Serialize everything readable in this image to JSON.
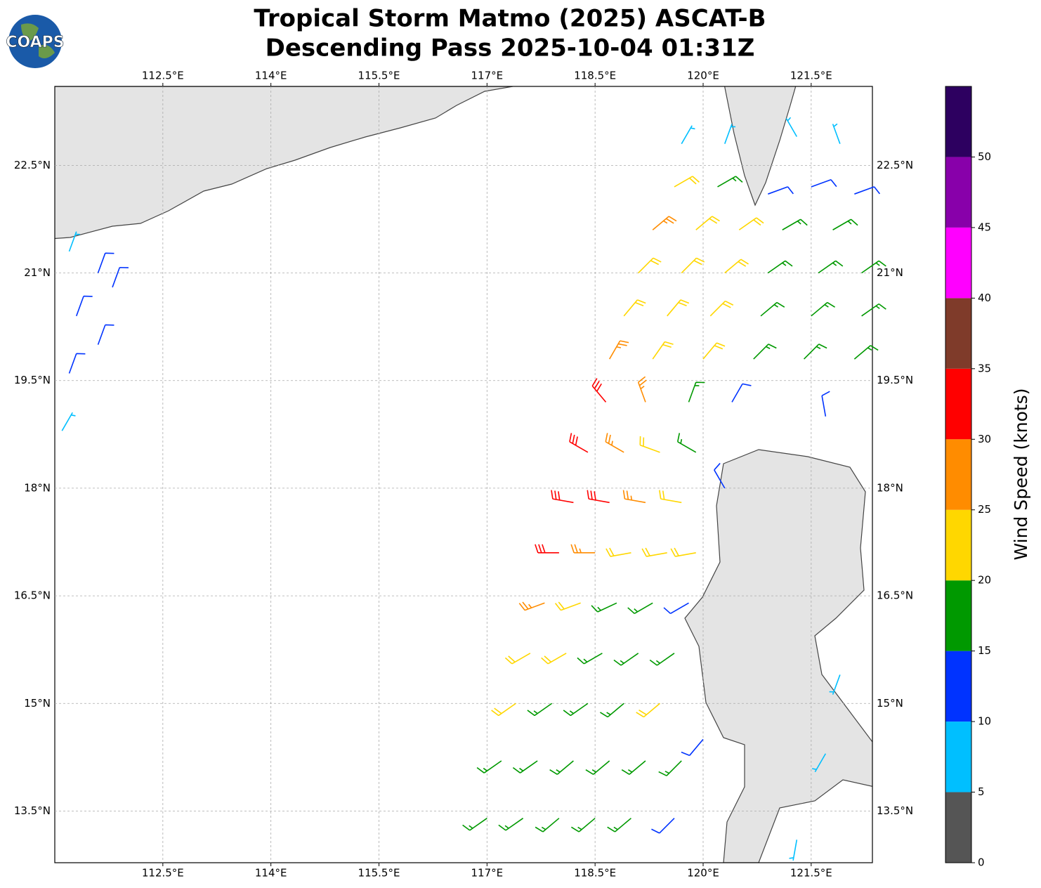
{
  "header": {
    "title_line1": "Tropical Storm Matmo (2025) ASCAT-B",
    "title_line2": "Descending Pass 2025-10-04 01:31Z",
    "logo_text": "COAPS"
  },
  "map": {
    "xlim": [
      111.0,
      122.35
    ],
    "ylim": [
      12.78,
      23.6
    ],
    "xticks": [
      {
        "value": 112.5,
        "label": "112.5°E"
      },
      {
        "value": 114,
        "label": "114°E"
      },
      {
        "value": 115.5,
        "label": "115.5°E"
      },
      {
        "value": 117,
        "label": "117°E"
      },
      {
        "value": 118.5,
        "label": "118.5°E"
      },
      {
        "value": 120,
        "label": "120°E"
      },
      {
        "value": 121.5,
        "label": "121.5°E"
      }
    ],
    "yticks": [
      {
        "value": 13.5,
        "label": "13.5°N"
      },
      {
        "value": 15,
        "label": "15°N"
      },
      {
        "value": 16.5,
        "label": "16.5°N"
      },
      {
        "value": 18,
        "label": "18°N"
      },
      {
        "value": 19.5,
        "label": "19.5°N"
      },
      {
        "value": 21,
        "label": "21°N"
      },
      {
        "value": 22.5,
        "label": "22.5°N"
      }
    ],
    "grid": true,
    "barbs": {
      "lon": [
        119.7,
        120.3,
        121.3,
        121.9,
        119.6,
        120.2,
        120.9,
        121.5,
        122.1,
        119.3,
        119.9,
        120.5,
        121.1,
        121.8,
        119.1,
        119.7,
        120.3,
        120.9,
        121.6,
        122.2,
        118.9,
        119.5,
        120.1,
        120.8,
        121.5,
        122.2,
        118.7,
        119.3,
        120.0,
        120.7,
        121.4,
        122.1,
        118.65,
        119.2,
        119.8,
        120.4,
        121.7,
        118.4,
        118.9,
        119.4,
        119.9,
        118.2,
        118.7,
        119.2,
        119.7,
        118.0,
        118.5,
        119.0,
        119.5,
        119.9,
        117.8,
        118.3,
        118.8,
        119.3,
        119.8,
        117.6,
        118.1,
        118.6,
        119.1,
        119.6,
        117.4,
        117.9,
        118.4,
        118.9,
        119.4,
        120.0,
        117.2,
        117.7,
        118.2,
        118.7,
        119.2,
        119.7,
        117.0,
        117.5,
        118.0,
        118.5,
        119.0,
        119.6,
        121.9,
        121.7,
        121.3,
        120.3,
        111.2,
        111.6,
        111.3,
        111.8,
        111.2,
        111.1,
        111.6
      ],
      "lat": [
        22.8,
        22.8,
        22.9,
        22.8,
        22.2,
        22.2,
        22.1,
        22.2,
        22.1,
        21.6,
        21.6,
        21.6,
        21.6,
        21.6,
        21.0,
        21.0,
        21.0,
        21.0,
        21.0,
        21.0,
        20.4,
        20.4,
        20.4,
        20.4,
        20.4,
        20.4,
        19.8,
        19.8,
        19.8,
        19.8,
        19.8,
        19.8,
        19.2,
        19.2,
        19.2,
        19.2,
        19.0,
        18.5,
        18.5,
        18.5,
        18.5,
        17.8,
        17.8,
        17.8,
        17.8,
        17.1,
        17.1,
        17.1,
        17.1,
        17.1,
        16.4,
        16.4,
        16.4,
        16.4,
        16.4,
        15.7,
        15.7,
        15.7,
        15.7,
        15.7,
        15.0,
        15.0,
        15.0,
        15.0,
        15.0,
        14.5,
        14.2,
        14.2,
        14.2,
        14.2,
        14.2,
        14.2,
        13.4,
        13.4,
        13.4,
        13.4,
        13.4,
        13.4,
        15.4,
        14.3,
        13.1,
        18.0,
        21.3,
        21.0,
        20.4,
        20.8,
        19.6,
        18.8,
        20.0
      ],
      "speed": [
        7,
        8,
        7,
        9,
        22,
        18,
        14,
        12,
        13,
        26,
        22,
        20,
        17,
        17,
        23,
        22,
        21,
        18,
        17,
        16,
        22,
        22,
        21,
        19,
        17,
        17,
        27,
        22,
        21,
        17,
        16,
        16,
        32,
        26,
        17,
        13,
        14,
        32,
        28,
        24,
        16,
        33,
        30,
        26,
        22,
        31,
        27,
        23,
        20,
        21,
        26,
        22,
        17,
        15,
        14,
        24,
        20,
        17,
        16,
        18,
        22,
        18,
        17,
        18,
        20,
        13,
        17,
        17,
        17,
        18,
        19,
        17,
        16,
        17,
        17,
        17,
        17,
        14,
        9,
        8,
        7,
        12,
        8,
        12,
        11,
        12,
        13,
        8,
        12
      ],
      "direction": [
        30,
        20,
        330,
        340,
        60,
        60,
        70,
        70,
        70,
        50,
        50,
        55,
        60,
        60,
        45,
        45,
        50,
        55,
        55,
        55,
        40,
        40,
        45,
        50,
        50,
        55,
        30,
        35,
        40,
        45,
        45,
        50,
        320,
        340,
        20,
        30,
        350,
        300,
        300,
        290,
        300,
        280,
        280,
        280,
        280,
        270,
        270,
        260,
        260,
        260,
        250,
        250,
        245,
        240,
        240,
        240,
        240,
        240,
        235,
        235,
        235,
        235,
        235,
        230,
        230,
        220,
        235,
        235,
        230,
        230,
        230,
        225,
        235,
        235,
        230,
        230,
        230,
        225,
        200,
        210,
        190,
        330,
        20,
        20,
        20,
        20,
        20,
        30,
        20
      ]
    }
  },
  "colorbar": {
    "label": "Wind Speed (knots)",
    "bounds": [
      0,
      5,
      10,
      15,
      20,
      25,
      30,
      35,
      40,
      45,
      50,
      55
    ],
    "colors": [
      "#555555",
      "#00bfff",
      "#0033ff",
      "#009900",
      "#ffd700",
      "#ff8c00",
      "#ff0000",
      "#7f3b2a",
      "#ff00ff",
      "#8800aa",
      "#2d0060"
    ],
    "ticks": [
      0,
      5,
      10,
      15,
      20,
      25,
      30,
      35,
      40,
      45,
      50
    ]
  }
}
